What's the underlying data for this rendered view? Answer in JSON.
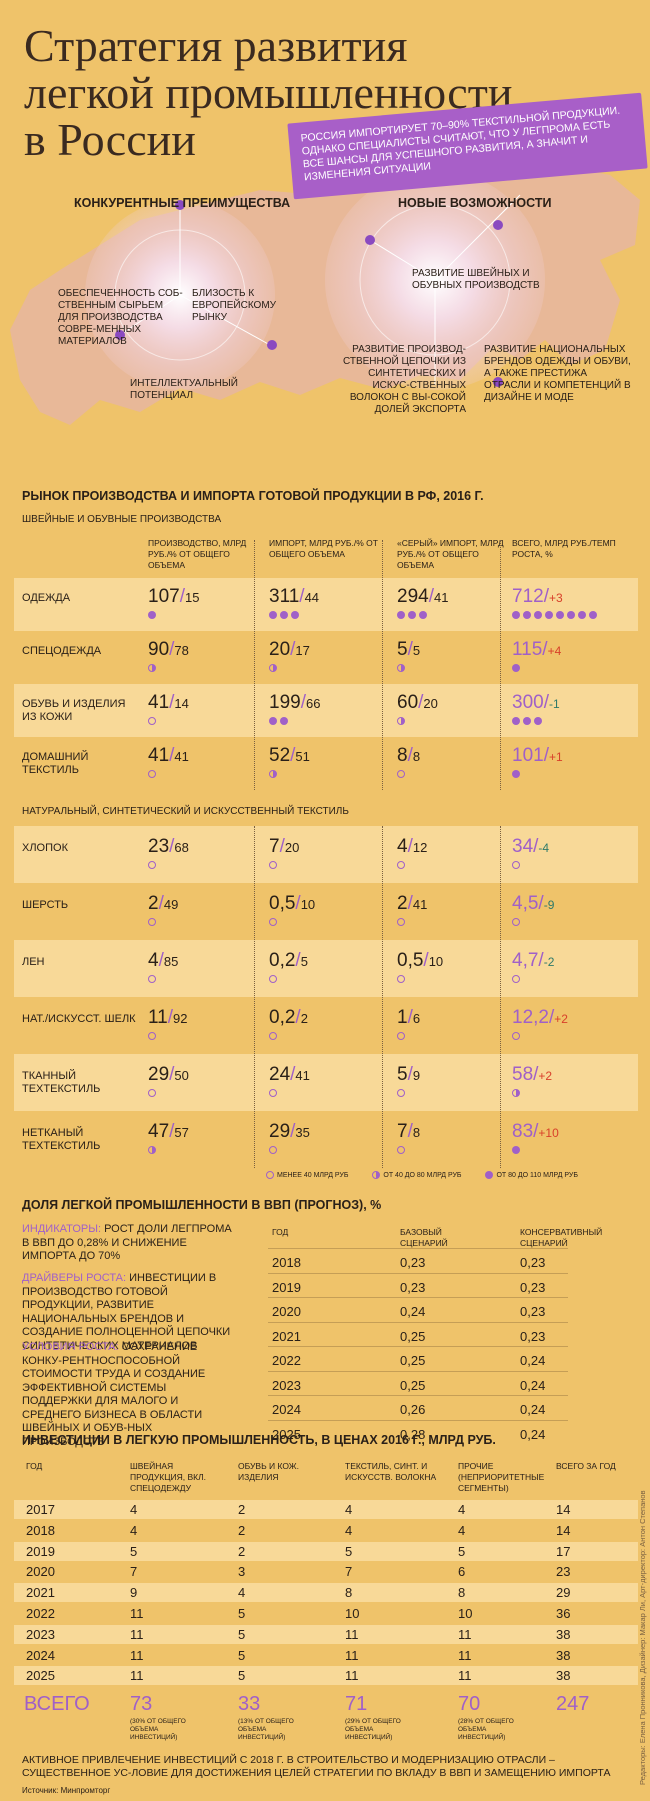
{
  "title": [
    "Стратегия развития",
    "легкой промышленности",
    "в России"
  ],
  "banner": "Россия импортирует 70–90% текстильной продукции. Однако специалисты  считают, что у легпрома есть все шансы для успешного развития, а значит и изменения ситуации",
  "advantages": {
    "heading": "Конкурентные преимущества",
    "items": [
      "Обеспеченность соб-ственным сырьем для производства совре-менных материалов",
      "Близость к европейскому рынку",
      "Интеллектуальный потенциал"
    ]
  },
  "opportunities": {
    "heading": "Новые возможности",
    "items": [
      "Развитие швейных и обувных производств",
      "Развитие производ-ственной цепочки из синтетических и искус-ственных волокон с вы-сокой долей экспорта",
      "Развитие национальных брендов одежды и обуви, а также престижа отрасли и компетенций в дизайне и моде"
    ]
  },
  "market": {
    "heading": "Рынок производства и импорта готовой продукции в РФ, 2016 г.",
    "sub1": "Швейные и обувные производства",
    "sub2": "Натуральный, синтетический и искусственный текстиль",
    "columns": [
      "Производство, млрд руб./% от общего объема",
      "Импорт, млрд руб./% от общего объема",
      "«Серый» импорт, млрд руб./% от общего объема",
      "Всего, млрд руб./темп роста, %"
    ],
    "rows1": [
      {
        "label": "Одежда",
        "cells": [
          [
            "107",
            "15",
            1,
            "full"
          ],
          [
            "311",
            "44",
            3,
            "full"
          ],
          [
            "294",
            "41",
            3,
            "full"
          ]
        ],
        "total": [
          "712",
          "+3",
          8,
          "full"
        ]
      },
      {
        "label": "Спецодежда",
        "cells": [
          [
            "90",
            "78",
            1,
            "half"
          ],
          [
            "20",
            "17",
            1,
            "half"
          ],
          [
            "5",
            "5",
            1,
            "half"
          ]
        ],
        "total": [
          "115",
          "+4",
          1,
          "full"
        ]
      },
      {
        "label": "Обувь и изделия из кожи",
        "cells": [
          [
            "41",
            "14",
            1,
            "empty"
          ],
          [
            "199",
            "66",
            2,
            "full"
          ],
          [
            "60",
            "20",
            1,
            "half"
          ]
        ],
        "total": [
          "300",
          "-1",
          3,
          "full"
        ]
      },
      {
        "label": "Домашний текстиль",
        "cells": [
          [
            "41",
            "41",
            1,
            "empty"
          ],
          [
            "52",
            "51",
            1,
            "half"
          ],
          [
            "8",
            "8",
            1,
            "empty"
          ]
        ],
        "total": [
          "101",
          "+1",
          1,
          "full"
        ]
      }
    ],
    "rows2": [
      {
        "label": "Хлопок",
        "cells": [
          [
            "23",
            "68",
            1,
            "empty"
          ],
          [
            "7",
            "20",
            1,
            "empty"
          ],
          [
            "4",
            "12",
            1,
            "empty"
          ]
        ],
        "total": [
          "34",
          "-4",
          1,
          "empty"
        ]
      },
      {
        "label": "Шерсть",
        "cells": [
          [
            "2",
            "49",
            1,
            "empty"
          ],
          [
            "0,5",
            "10",
            1,
            "empty"
          ],
          [
            "2",
            "41",
            1,
            "empty"
          ]
        ],
        "total": [
          "4,5",
          "-9",
          1,
          "empty"
        ]
      },
      {
        "label": "Лен",
        "cells": [
          [
            "4",
            "85",
            1,
            "empty"
          ],
          [
            "0,2",
            "5",
            1,
            "empty"
          ],
          [
            "0,5",
            "10",
            1,
            "empty"
          ]
        ],
        "total": [
          "4,7",
          "-2",
          1,
          "empty"
        ]
      },
      {
        "label": "Нат./искусст. шелк",
        "cells": [
          [
            "11",
            "92",
            1,
            "empty"
          ],
          [
            "0,2",
            "2",
            1,
            "empty"
          ],
          [
            "1",
            "6",
            1,
            "empty"
          ]
        ],
        "total": [
          "12,2",
          "+2",
          1,
          "empty"
        ]
      },
      {
        "label": "Тканный техтекстиль",
        "cells": [
          [
            "29",
            "50",
            1,
            "empty"
          ],
          [
            "24",
            "41",
            1,
            "empty"
          ],
          [
            "5",
            "9",
            1,
            "empty"
          ]
        ],
        "total": [
          "58",
          "+2",
          1,
          "half"
        ]
      },
      {
        "label": "Нетканый техтекстиль",
        "cells": [
          [
            "47",
            "57",
            1,
            "half"
          ],
          [
            "29",
            "35",
            1,
            "empty"
          ],
          [
            "7",
            "8",
            1,
            "empty"
          ]
        ],
        "total": [
          "83",
          "+10",
          1,
          "full"
        ]
      }
    ],
    "legend": [
      "менее 40 млрд руб",
      "от 40 до 80 млрд руб",
      "от 80 до 110 млрд руб"
    ]
  },
  "gdp": {
    "heading": "Доля легкой промышленности в ВВП (прогноз), %",
    "indicators_k": "Индикаторы:",
    "indicators": " рост доли легпрома в ВВП до 0,28% и снижение импорта до 70%",
    "drivers_k": "Драйверы роста:",
    "drivers": " инвестиции в производство готовой продукции, развитие национальных брендов и создание полноценной цепочки синтетических материалов",
    "conditions_k": "Условия роста:",
    "conditions": " сохранение конку-рентноспособной стоимости труда и создание эффективной системы поддержки для малого и среднего бизнеса в области швейных и обув-ных производств",
    "col_year": "Год",
    "col_base": "Базовый сценарий",
    "col_cons": "Консервативный сценарий",
    "rows": [
      [
        "2018",
        "0,23",
        "0,23"
      ],
      [
        "2019",
        "0,23",
        "0,23"
      ],
      [
        "2020",
        "0,24",
        "0,23"
      ],
      [
        "2021",
        "0,25",
        "0,23"
      ],
      [
        "2022",
        "0,25",
        "0,24"
      ],
      [
        "2023",
        "0,25",
        "0,24"
      ],
      [
        "2024",
        "0,26",
        "0,24"
      ],
      [
        "2025",
        "0,28",
        "0,24"
      ]
    ]
  },
  "invest": {
    "heading": "Инвестиции в легкую промышленность, в ценах 2016 г., млрд руб.",
    "columns": [
      "Год",
      "Швейная продукция, вкл. спецодежду",
      "Обувь и кож. изделия",
      "Текстиль, синт. и искусств. волокна",
      "Прочие (неприоритетные сегменты)",
      "Всего за год"
    ],
    "rows": [
      [
        "2017",
        "4",
        "2",
        "4",
        "4",
        "14"
      ],
      [
        "2018",
        "4",
        "2",
        "4",
        "4",
        "14"
      ],
      [
        "2019",
        "5",
        "2",
        "5",
        "5",
        "17"
      ],
      [
        "2020",
        "7",
        "3",
        "7",
        "6",
        "23"
      ],
      [
        "2021",
        "9",
        "4",
        "8",
        "8",
        "29"
      ],
      [
        "2022",
        "11",
        "5",
        "10",
        "10",
        "36"
      ],
      [
        "2023",
        "11",
        "5",
        "11",
        "11",
        "38"
      ],
      [
        "2024",
        "11",
        "5",
        "11",
        "11",
        "38"
      ],
      [
        "2025",
        "11",
        "5",
        "11",
        "11",
        "38"
      ]
    ],
    "total_label": "Всего",
    "totals": [
      "73",
      "33",
      "71",
      "70",
      "247"
    ],
    "shares": [
      "(30% от общего объема инвестиций)",
      "(13% от общего объема инвестиций)",
      "(29% от общего объема инвестиций)",
      "(28% от общего объема инвестиций)"
    ]
  },
  "footer": "Активное привлечение инвестиций с 2018 г. в строительство и модернизацию отрасли – существенное ус-ловие для достижения целей стратегии по вкладу в ВВП и замещению импорта",
  "source": "Источник: Минпромторг",
  "credits": "Редакторы: Елена Пронникова, Дизайнер: Макар Ли, Арт-директор: Антон Степанов",
  "colors": {
    "background": "#efc36a",
    "accent": "#a060c8",
    "positive": "#d8402a",
    "negative": "#2f7a6a"
  }
}
